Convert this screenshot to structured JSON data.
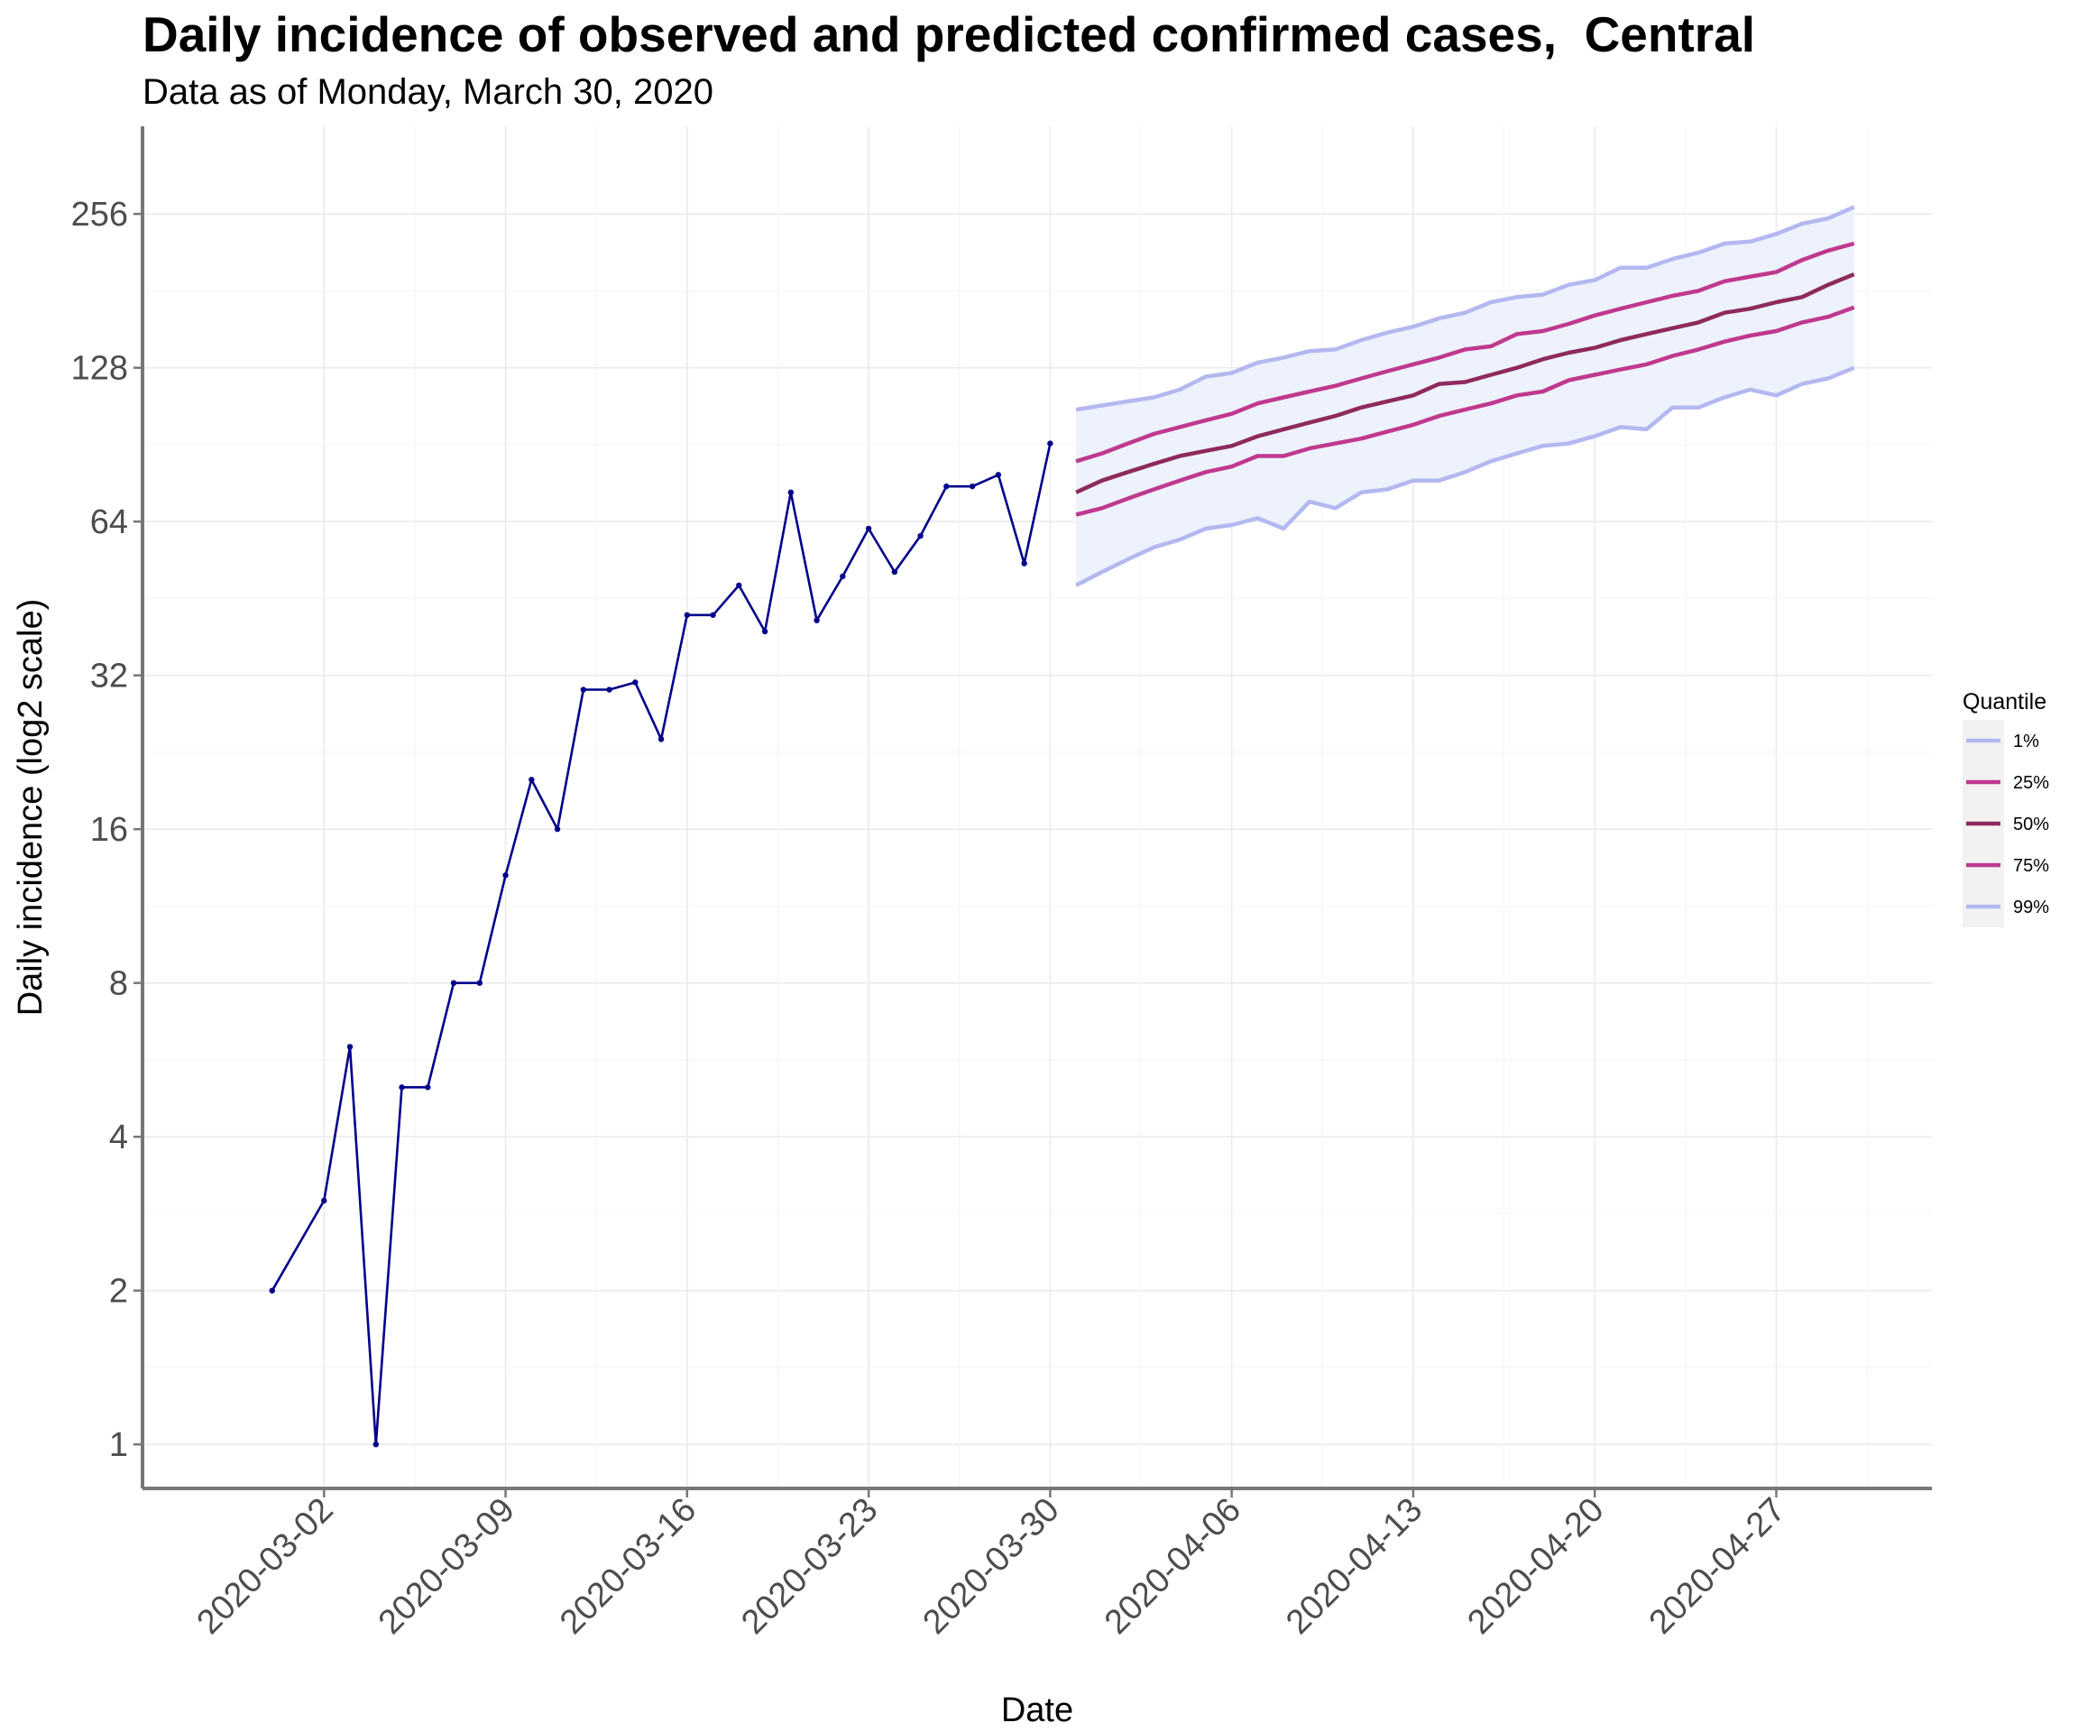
{
  "chart_data": {
    "type": "line",
    "title": "Daily incidence of observed and predicted confirmed cases,  Central",
    "subtitle": "Data as of Monday, March 30, 2020",
    "xlabel": "Date",
    "ylabel": "Daily incidence (log2 scale)",
    "y_scale": "log2",
    "ylim": [
      0.82,
      380
    ],
    "xlim": [
      "2020-02-24",
      "2020-05-03"
    ],
    "grid": true,
    "y_ticks": [
      1,
      2,
      4,
      8,
      16,
      32,
      64,
      128,
      256
    ],
    "y_tick_labels": [
      "1",
      "2",
      "4",
      "8",
      "16",
      "32",
      "64",
      "128",
      "256"
    ],
    "x_ticks": [
      "2020-03-02",
      "2020-03-09",
      "2020-03-16",
      "2020-03-23",
      "2020-03-30",
      "2020-04-06",
      "2020-04-13",
      "2020-04-20",
      "2020-04-27"
    ],
    "legend": {
      "title": "Quantile",
      "placement": "right",
      "entries": [
        {
          "label": "1%",
          "color": "#b4b8f0"
        },
        {
          "label": "25%",
          "color": "#c0398e"
        },
        {
          "label": "50%",
          "color": "#8e2a5e"
        },
        {
          "label": "75%",
          "color": "#c0398e"
        },
        {
          "label": "99%",
          "color": "#b4b8f0"
        }
      ]
    },
    "observed": {
      "color": "#00008b",
      "x": [
        "2020-02-29",
        "2020-03-02",
        "2020-03-03",
        "2020-03-04",
        "2020-03-05",
        "2020-03-06",
        "2020-03-07",
        "2020-03-08",
        "2020-03-09",
        "2020-03-10",
        "2020-03-11",
        "2020-03-12",
        "2020-03-13",
        "2020-03-14",
        "2020-03-15",
        "2020-03-16",
        "2020-03-17",
        "2020-03-18",
        "2020-03-19",
        "2020-03-20",
        "2020-03-21",
        "2020-03-22",
        "2020-03-23",
        "2020-03-24",
        "2020-03-25",
        "2020-03-26",
        "2020-03-27",
        "2020-03-28",
        "2020-03-29",
        "2020-03-30"
      ],
      "y": [
        2,
        3,
        6,
        1,
        5,
        5,
        8,
        8,
        13,
        20,
        16,
        30,
        30,
        31,
        24,
        42,
        42,
        48,
        39,
        73,
        41,
        50,
        62,
        51,
        60,
        75,
        75,
        79,
        53,
        91
      ]
    },
    "forecast": {
      "x_start": "2020-03-31",
      "x_end": "2020-04-30",
      "band_color": "#eef2fd",
      "series": [
        {
          "name": "99%",
          "color": "#b4b8f0",
          "values": [
            106,
            108,
            110,
            112,
            116,
            123,
            125,
            131,
            134,
            138,
            139,
            145,
            150,
            154,
            160,
            164,
            172,
            176,
            178,
            186,
            190,
            201,
            201,
            209,
            215,
            224,
            226,
            234,
            245,
            251,
            264
          ]
        },
        {
          "name": "75%",
          "color": "#c0398e",
          "values": [
            84,
            87,
            91,
            95,
            98,
            101,
            104,
            109,
            112,
            115,
            118,
            122,
            126,
            130,
            134,
            139,
            141,
            149,
            151,
            156,
            162,
            167,
            172,
            177,
            181,
            189,
            193,
            197,
            208,
            217,
            224
          ]
        },
        {
          "name": "50%",
          "color": "#8e2a5e",
          "values": [
            73,
            77,
            80,
            83,
            86,
            88,
            90,
            94,
            97,
            100,
            103,
            107,
            110,
            113,
            119,
            120,
            124,
            128,
            133,
            137,
            140,
            145,
            149,
            153,
            157,
            164,
            167,
            172,
            176,
            186,
            195
          ]
        },
        {
          "name": "25%",
          "color": "#c0398e",
          "values": [
            66,
            68,
            71,
            74,
            77,
            80,
            82,
            86,
            86,
            89,
            91,
            93,
            96,
            99,
            103,
            106,
            109,
            113,
            115,
            121,
            124,
            127,
            130,
            135,
            139,
            144,
            148,
            151,
            157,
            161,
            168
          ]
        },
        {
          "name": "1%",
          "color": "#b4b8f0",
          "values": [
            48,
            51,
            54,
            57,
            59,
            62,
            63,
            65,
            62,
            70,
            68,
            73,
            74,
            77,
            77,
            80,
            84,
            87,
            90,
            91,
            94,
            98,
            97,
            107,
            107,
            112,
            116,
            113,
            119,
            122,
            128
          ]
        }
      ]
    }
  }
}
